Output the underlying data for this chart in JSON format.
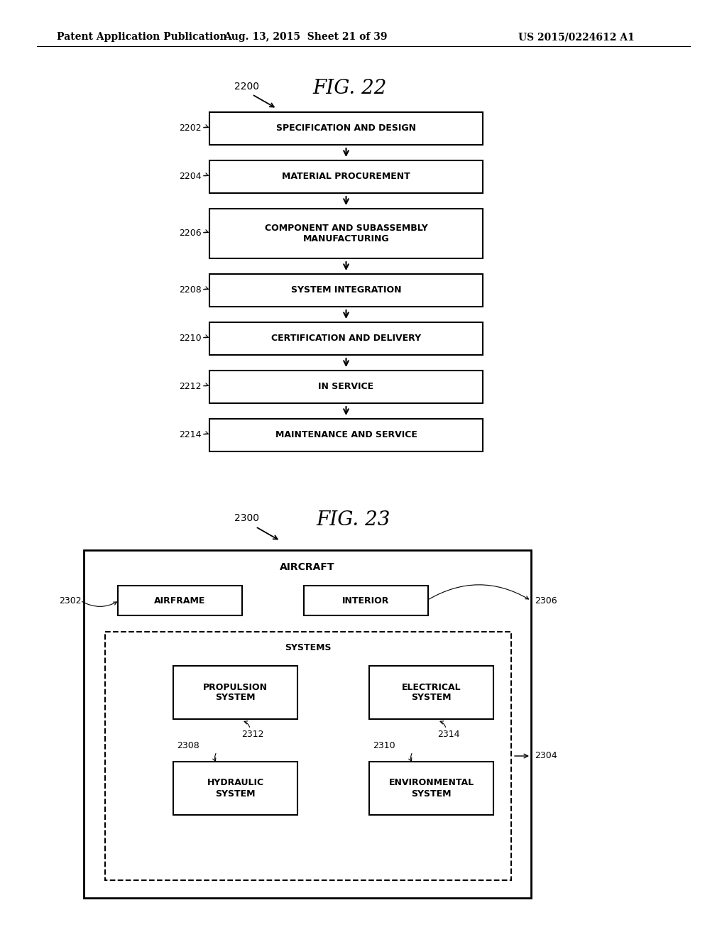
{
  "bg_color": "#ffffff",
  "header_left": "Patent Application Publication",
  "header_mid": "Aug. 13, 2015  Sheet 21 of 39",
  "header_right": "US 2015/0224612 A1",
  "fig22_title": "FIG. 22",
  "fig22_ref": "2200",
  "boxes22": [
    {
      "label": "2202",
      "text": "SPECIFICATION AND DESIGN",
      "multiline": false
    },
    {
      "label": "2204",
      "text": "MATERIAL PROCUREMENT",
      "multiline": false
    },
    {
      "label": "2206",
      "text": "COMPONENT AND SUBASSEMBLY\nMANUFACTURING",
      "multiline": true
    },
    {
      "label": "2208",
      "text": "SYSTEM INTEGRATION",
      "multiline": false
    },
    {
      "label": "2210",
      "text": "CERTIFICATION AND DELIVERY",
      "multiline": false
    },
    {
      "label": "2212",
      "text": "IN SERVICE",
      "multiline": false
    },
    {
      "label": "2214",
      "text": "MAINTENANCE AND SERVICE",
      "multiline": false
    }
  ],
  "fig23_title": "FIG. 23",
  "fig23_ref": "2300",
  "aircraft_text": "AIRCRAFT",
  "airframe_text": "AIRFRAME",
  "airframe_label": "2302",
  "interior_text": "INTERIOR",
  "interior_label": "2306",
  "systems_text": "SYSTEMS",
  "systems_label": "2304",
  "propulsion_text": "PROPULSION\nSYSTEM",
  "electrical_text": "ELECTRICAL\nSYSTEM",
  "hydraulic_text": "HYDRAULIC\nSYSTEM",
  "environmental_text": "ENVIRONMENTAL\nSYSTEM",
  "label_2308": "2308",
  "label_2310": "2310",
  "label_2312": "2312",
  "label_2314": "2314"
}
